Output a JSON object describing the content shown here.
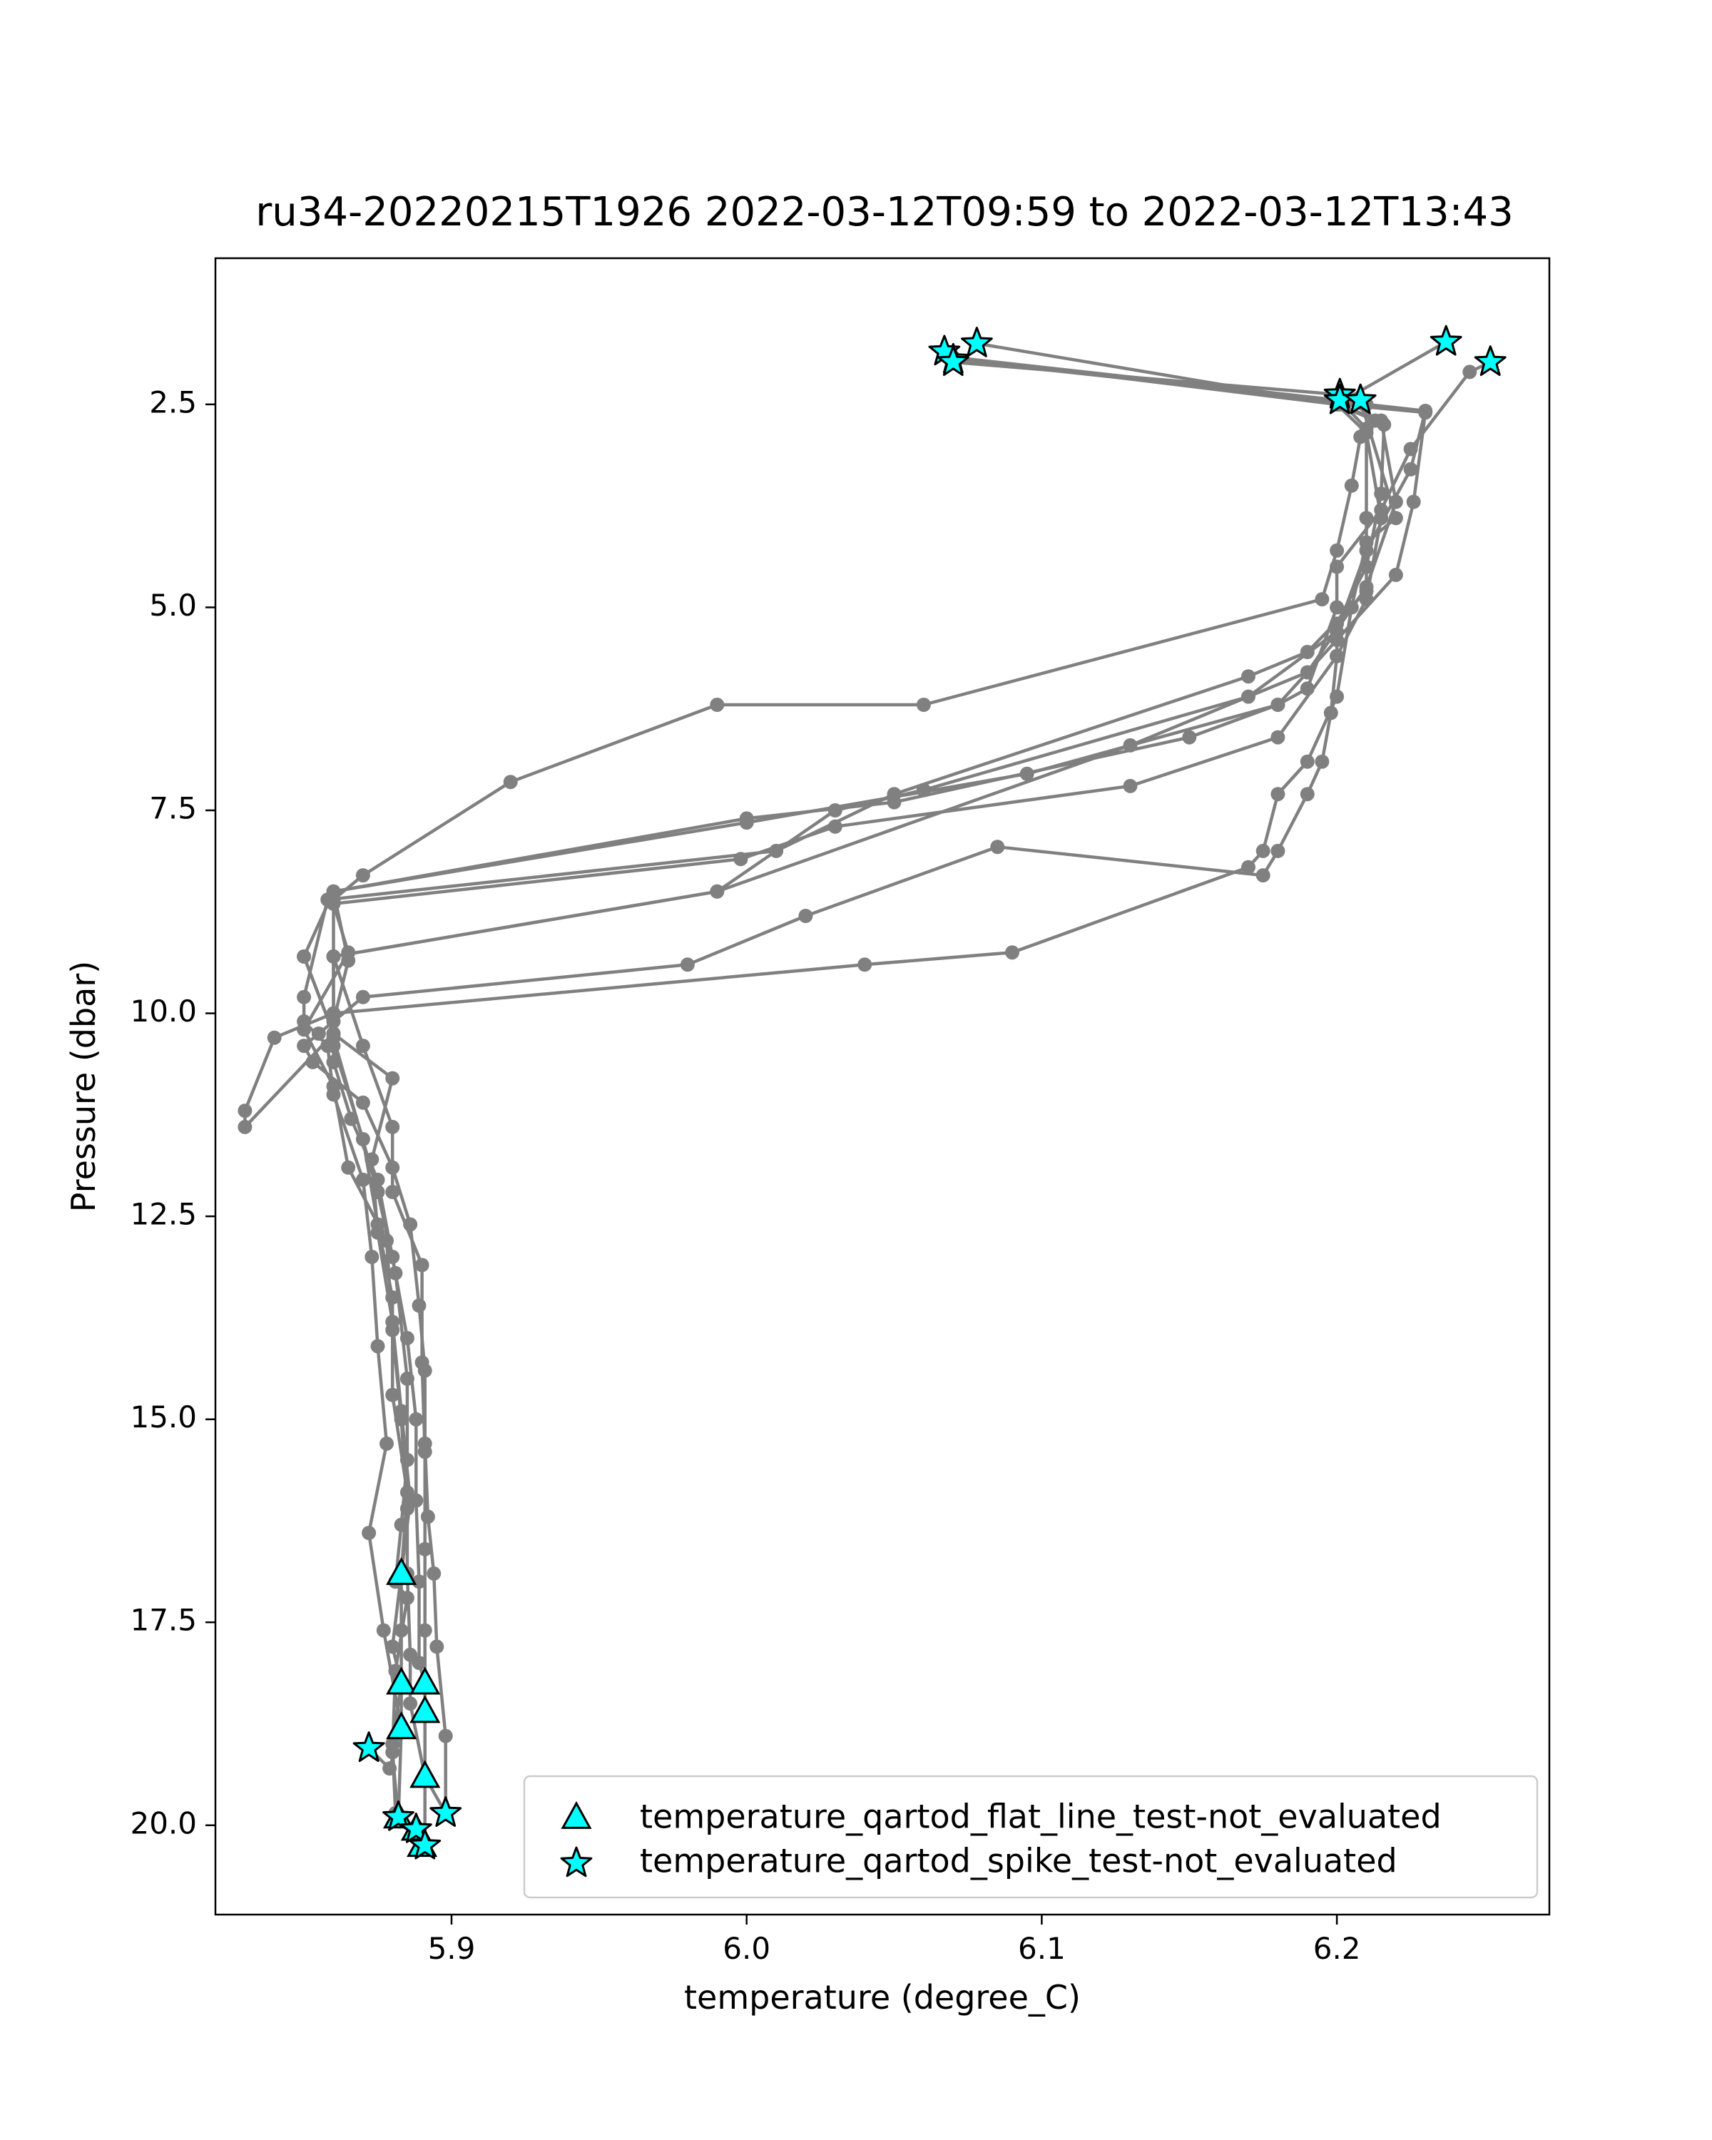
{
  "chart_data": {
    "type": "scatter",
    "title": "ru34-20220215T1926 2022-03-12T09:59 to 2022-03-12T13:43",
    "xlabel": "temperature (degree_C)",
    "ylabel": "Pressure (dbar)",
    "xlim": [
      5.82,
      6.272
    ],
    "ylim": [
      21.1,
      0.7
    ],
    "y_inverted": true,
    "x_ticks": [
      5.9,
      6.0,
      6.1,
      6.2
    ],
    "x_tick_labels": [
      "5.9",
      "6.0",
      "6.1",
      "6.2"
    ],
    "y_ticks": [
      2.5,
      5.0,
      7.5,
      10.0,
      12.5,
      15.0,
      17.5,
      20.0
    ],
    "y_tick_labels": [
      "2.5",
      "5.0",
      "7.5",
      "10.0",
      "12.5",
      "15.0",
      "17.5",
      "20.0"
    ],
    "grid": false,
    "legend_position": "lower-right",
    "colors": {
      "line": "#808080",
      "marker_fill": "#00ffff",
      "marker_edge": "#000000"
    },
    "series": [
      {
        "marker": "circle",
        "points": [
          [
            6.07,
            1.95
          ],
          [
            6.21,
            2.5
          ],
          [
            6.23,
            2.58
          ],
          [
            6.225,
            3.3
          ],
          [
            6.21,
            4.3
          ],
          [
            6.2,
            5.3
          ],
          [
            6.17,
            6.1
          ],
          [
            6.06,
            7.25
          ],
          [
            6.03,
            7.5
          ],
          [
            5.99,
            8.5
          ],
          [
            5.86,
            9.3
          ],
          [
            5.87,
            10.4
          ],
          [
            5.88,
            11.4
          ],
          [
            5.88,
            12.2
          ],
          [
            5.89,
            13.1
          ],
          [
            5.89,
            14.3
          ],
          [
            5.891,
            15.4
          ],
          [
            5.891,
            16.6
          ],
          [
            5.891,
            17.6
          ],
          [
            5.891,
            18.6
          ],
          [
            5.891,
            19.4
          ],
          [
            5.898,
            19.85
          ]
        ]
      },
      {
        "marker": "circle",
        "points": [
          [
            6.07,
            1.92
          ],
          [
            6.2,
            2.5
          ],
          [
            6.215,
            2.7
          ],
          [
            6.22,
            3.7
          ],
          [
            6.21,
            4.75
          ],
          [
            6.19,
            5.8
          ],
          [
            6.13,
            6.7
          ],
          [
            5.99,
            8.5
          ],
          [
            5.86,
            9.3
          ],
          [
            5.86,
            10.4
          ],
          [
            5.87,
            11.55
          ],
          [
            5.875,
            12.6
          ],
          [
            5.88,
            13.5
          ],
          [
            5.88,
            14.7
          ],
          [
            5.885,
            15.9
          ],
          [
            5.883,
            16.9
          ],
          [
            5.883,
            17.6
          ],
          [
            5.883,
            18.25
          ],
          [
            5.883,
            18.8
          ],
          [
            5.882,
            19.9
          ],
          [
            5.888,
            20.05
          ],
          [
            5.89,
            20.25
          ]
        ]
      },
      {
        "marker": "circle",
        "points": [
          [
            6.078,
            1.75
          ],
          [
            6.201,
            2.5
          ],
          [
            6.23,
            2.6
          ],
          [
            6.226,
            3.7
          ],
          [
            6.22,
            4.6
          ],
          [
            6.2,
            5.4
          ],
          [
            6.18,
            6.2
          ],
          [
            6.095,
            7.05
          ],
          [
            6.0,
            7.65
          ],
          [
            5.86,
            8.5
          ],
          [
            5.85,
            9.3
          ],
          [
            5.86,
            10.25
          ],
          [
            5.88,
            10.8
          ],
          [
            5.873,
            11.8
          ],
          [
            5.875,
            12.7
          ],
          [
            5.88,
            13.8
          ],
          [
            5.883,
            14.9
          ],
          [
            5.886,
            16.0
          ],
          [
            5.883,
            16.9
          ],
          [
            5.88,
            17.8
          ],
          [
            5.883,
            18.25
          ],
          [
            5.88,
            19.0
          ],
          [
            5.881,
            19.85
          ]
        ]
      },
      {
        "marker": "circle",
        "points": [
          [
            6.07,
            1.92
          ],
          [
            6.201,
            2.45
          ],
          [
            6.21,
            2.8
          ],
          [
            6.21,
            3.9
          ],
          [
            6.21,
            4.8
          ],
          [
            6.19,
            5.55
          ],
          [
            6.17,
            5.85
          ],
          [
            6.05,
            7.3
          ],
          [
            6.01,
            8.0
          ],
          [
            5.858,
            8.6
          ],
          [
            5.85,
            9.8
          ],
          [
            5.85,
            10.1
          ],
          [
            5.858,
            10.4
          ],
          [
            5.86,
            11.0
          ],
          [
            5.87,
            12.05
          ],
          [
            5.873,
            13.0
          ],
          [
            5.875,
            14.1
          ],
          [
            5.878,
            15.3
          ],
          [
            5.872,
            16.4
          ],
          [
            5.877,
            17.6
          ],
          [
            5.883,
            18.8
          ],
          [
            5.879,
            19.3
          ],
          [
            5.872,
            19.05
          ]
        ]
      },
      {
        "marker": "circle",
        "points": [
          [
            6.237,
            1.73
          ],
          [
            6.2,
            2.5
          ],
          [
            6.21,
            2.85
          ],
          [
            6.215,
            3.9
          ],
          [
            6.21,
            4.9
          ],
          [
            6.2,
            5.6
          ],
          [
            6.18,
            6.6
          ],
          [
            6.13,
            7.2
          ],
          [
            6.03,
            7.7
          ],
          [
            5.998,
            8.1
          ],
          [
            5.86,
            8.65
          ],
          [
            5.865,
            9.25
          ],
          [
            5.85,
            10.2
          ],
          [
            5.86,
            10.9
          ],
          [
            5.865,
            11.9
          ],
          [
            5.878,
            12.8
          ],
          [
            5.88,
            13.9
          ],
          [
            5.883,
            15.0
          ],
          [
            5.885,
            16.1
          ],
          [
            5.885,
            16.9
          ],
          [
            5.886,
            17.9
          ],
          [
            5.886,
            18.5
          ],
          [
            5.891,
            19.4
          ],
          [
            5.891,
            20.25
          ]
        ]
      },
      {
        "marker": "circle",
        "points": [
          [
            6.252,
            1.98
          ],
          [
            6.245,
            2.1
          ],
          [
            6.225,
            3.05
          ],
          [
            6.215,
            3.8
          ],
          [
            6.2,
            4.5
          ],
          [
            6.2,
            5.0
          ],
          [
            6.19,
            6.0
          ],
          [
            6.18,
            6.2
          ],
          [
            6.15,
            6.6
          ],
          [
            6.05,
            7.4
          ],
          [
            6.0,
            7.6
          ],
          [
            5.86,
            8.5
          ],
          [
            5.865,
            9.35
          ],
          [
            5.86,
            10.1
          ],
          [
            5.86,
            10.6
          ],
          [
            5.866,
            11.3
          ],
          [
            5.875,
            12.05
          ],
          [
            5.88,
            13.0
          ],
          [
            5.885,
            14.0
          ],
          [
            5.888,
            15.0
          ],
          [
            5.888,
            16.0
          ],
          [
            5.889,
            17.0
          ],
          [
            5.889,
            18.0
          ],
          [
            5.891,
            18.25
          ]
        ]
      },
      {
        "marker": "circle",
        "points": [
          [
            6.07,
            1.98
          ],
          [
            6.201,
            2.38
          ],
          [
            6.216,
            2.75
          ],
          [
            6.215,
            3.6
          ],
          [
            6.21,
            4.5
          ],
          [
            6.2,
            5.2
          ],
          [
            6.2,
            5.6
          ],
          [
            6.198,
            6.3
          ],
          [
            6.195,
            6.9
          ],
          [
            6.19,
            7.3
          ],
          [
            6.18,
            8.0
          ],
          [
            6.175,
            8.3
          ],
          [
            6.085,
            7.95
          ],
          [
            6.02,
            8.8
          ],
          [
            5.98,
            9.4
          ],
          [
            5.87,
            9.8
          ],
          [
            5.855,
            10.25
          ],
          [
            5.85,
            10.4
          ],
          [
            5.853,
            10.6
          ],
          [
            5.87,
            11.1
          ],
          [
            5.88,
            11.9
          ],
          [
            5.886,
            12.6
          ],
          [
            5.889,
            13.6
          ],
          [
            5.891,
            14.4
          ],
          [
            5.891,
            15.3
          ],
          [
            5.892,
            16.2
          ],
          [
            5.894,
            16.9
          ],
          [
            5.895,
            17.8
          ],
          [
            5.898,
            18.9
          ],
          [
            5.898,
            19.85
          ]
        ]
      },
      {
        "marker": "circle",
        "points": [
          [
            6.208,
            2.45
          ],
          [
            6.22,
            3.9
          ],
          [
            6.21,
            4.2
          ],
          [
            6.205,
            5.0
          ],
          [
            6.2,
            6.1
          ],
          [
            6.19,
            6.9
          ],
          [
            6.18,
            7.3
          ],
          [
            6.175,
            8.0
          ],
          [
            6.17,
            8.2
          ],
          [
            6.09,
            9.25
          ],
          [
            6.04,
            9.4
          ],
          [
            5.86,
            10.0
          ],
          [
            5.84,
            10.3
          ],
          [
            5.83,
            11.2
          ],
          [
            5.83,
            11.4
          ],
          [
            5.86,
            10.25
          ],
          [
            5.85,
            9.3
          ]
        ]
      },
      {
        "marker": "circle",
        "points": [
          [
            6.2,
            2.5
          ],
          [
            6.213,
            2.7
          ],
          [
            6.208,
            2.9
          ],
          [
            6.205,
            3.5
          ],
          [
            6.2,
            4.3
          ],
          [
            6.195,
            4.9
          ],
          [
            6.06,
            6.2
          ],
          [
            5.99,
            6.2
          ],
          [
            5.92,
            7.15
          ],
          [
            5.87,
            8.3
          ],
          [
            5.86,
            8.6
          ],
          [
            5.86,
            10.3
          ],
          [
            5.875,
            12.2
          ],
          [
            5.881,
            13.2
          ],
          [
            5.885,
            14.5
          ],
          [
            5.885,
            15.5
          ],
          [
            5.883,
            16.3
          ],
          [
            5.881,
            17.0
          ],
          [
            5.885,
            17.2
          ],
          [
            5.881,
            18.1
          ],
          [
            5.88,
            19.1
          ],
          [
            5.882,
            19.95
          ]
        ]
      }
    ],
    "flags": [
      {
        "name": "temperature_qartod_flat_line_test-not_evaluated",
        "marker": "triangle",
        "points": [
          [
            5.883,
            16.9
          ],
          [
            5.883,
            18.25
          ],
          [
            5.891,
            18.25
          ],
          [
            5.891,
            18.6
          ],
          [
            5.883,
            18.8
          ],
          [
            5.891,
            19.4
          ],
          [
            5.882,
            19.9
          ],
          [
            5.888,
            20.05
          ],
          [
            5.89,
            20.25
          ]
        ]
      },
      {
        "name": "temperature_qartod_spike_test-not_evaluated",
        "marker": "star",
        "points": [
          [
            6.07,
            1.95
          ],
          [
            6.067,
            1.85
          ],
          [
            6.07,
            1.98
          ],
          [
            6.078,
            1.75
          ],
          [
            6.201,
            2.38
          ],
          [
            6.201,
            2.45
          ],
          [
            6.208,
            2.45
          ],
          [
            6.237,
            1.73
          ],
          [
            6.252,
            1.98
          ],
          [
            5.872,
            19.05
          ],
          [
            5.882,
            19.9
          ],
          [
            5.888,
            20.05
          ],
          [
            5.898,
            19.85
          ],
          [
            5.891,
            20.25
          ]
        ]
      }
    ],
    "legend": [
      {
        "label": "temperature_qartod_flat_line_test-not_evaluated",
        "marker": "triangle"
      },
      {
        "label": "temperature_qartod_spike_test-not_evaluated",
        "marker": "star"
      }
    ]
  }
}
